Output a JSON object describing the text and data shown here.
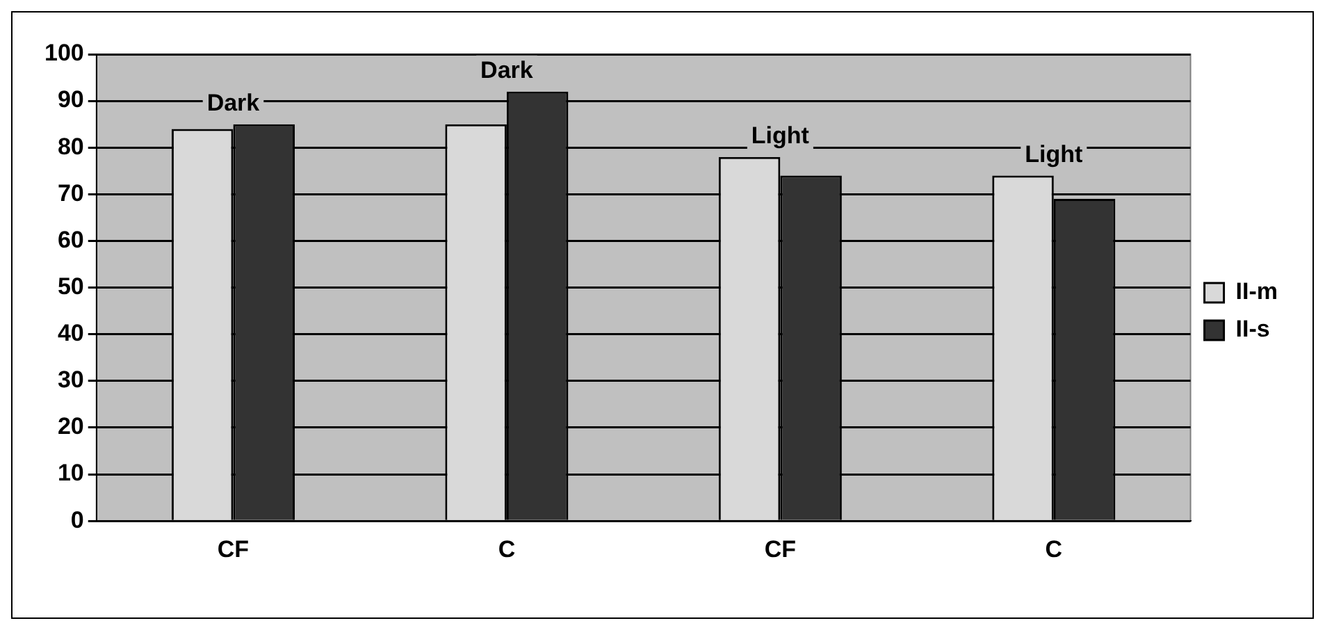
{
  "chart_data": {
    "type": "bar",
    "categories": [
      "CF",
      "C",
      "CF",
      "C"
    ],
    "series": [
      {
        "name": "II-m",
        "color": "#d9d9d9",
        "values": [
          84,
          85,
          78,
          74
        ]
      },
      {
        "name": "II-s",
        "color": "#333333",
        "values": [
          85,
          92,
          74,
          69
        ]
      }
    ],
    "annotations": [
      "Dark",
      "Dark",
      "Light",
      "Light"
    ],
    "ylim": [
      0,
      100
    ],
    "yticks": [
      0,
      10,
      20,
      30,
      40,
      50,
      60,
      70,
      80,
      90,
      100
    ],
    "grid": "y",
    "legend": "right"
  }
}
